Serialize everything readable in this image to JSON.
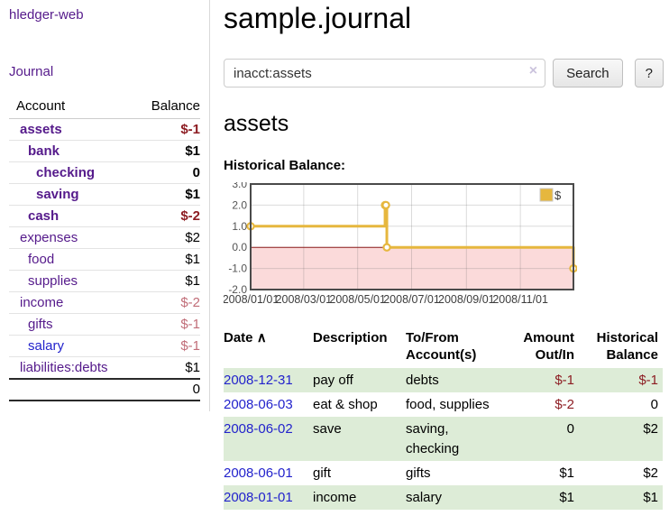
{
  "colors": {
    "link_purple": "#551a8b",
    "link_blue": "#2323cc",
    "negative_strong": "#8d1d23",
    "negative_soft": "#c16d78",
    "row_stripe_green": "#ddecd7",
    "chart_gold": "#e6b73e",
    "chart_negative_fill": "#fbdada",
    "chart_zero_line": "#8f1f1f"
  },
  "sidebar": {
    "app_title": "hledger-web",
    "journal_label": "Journal",
    "accounts": {
      "header_account": "Account",
      "header_balance": "Balance",
      "rows": [
        {
          "label": "assets",
          "depth": 1,
          "bold": true,
          "balance": "$-1",
          "balance_class": "neg-strong",
          "link_class": ""
        },
        {
          "label": "bank",
          "depth": 2,
          "bold": true,
          "balance": "$1",
          "balance_class": "",
          "link_class": ""
        },
        {
          "label": "checking",
          "depth": 3,
          "bold": true,
          "balance": "0",
          "balance_class": "",
          "link_class": ""
        },
        {
          "label": "saving",
          "depth": 3,
          "bold": true,
          "balance": "$1",
          "balance_class": "",
          "link_class": ""
        },
        {
          "label": "cash",
          "depth": 2,
          "bold": true,
          "balance": "$-2",
          "balance_class": "neg-strong",
          "link_class": ""
        },
        {
          "label": "expenses",
          "depth": 1,
          "bold": false,
          "balance": "$2",
          "balance_class": "",
          "link_class": ""
        },
        {
          "label": "food",
          "depth": 2,
          "bold": false,
          "balance": "$1",
          "balance_class": "",
          "link_class": ""
        },
        {
          "label": "supplies",
          "depth": 2,
          "bold": false,
          "balance": "$1",
          "balance_class": "",
          "link_class": ""
        },
        {
          "label": "income",
          "depth": 1,
          "bold": false,
          "balance": "$-2",
          "balance_class": "neg-soft",
          "link_class": ""
        },
        {
          "label": "gifts",
          "depth": 2,
          "bold": false,
          "balance": "$-1",
          "balance_class": "neg-soft",
          "link_class": ""
        },
        {
          "label": "salary",
          "depth": 2,
          "bold": false,
          "balance": "$-1",
          "balance_class": "neg-soft",
          "link_class": "blue"
        },
        {
          "label": "liabilities:debts",
          "depth": 1,
          "bold": false,
          "balance": "$1",
          "balance_class": "",
          "link_class": ""
        }
      ],
      "total": "0"
    }
  },
  "main": {
    "title": "sample.journal",
    "search": {
      "value": "inacct:assets",
      "clear_icon": "×",
      "search_button": "Search",
      "help_button": "?"
    },
    "account_heading": "assets",
    "chart_label": "Historical Balance:"
  },
  "chart_data": {
    "type": "line",
    "title": "Historical Balance",
    "legend": "$",
    "legend_position": "top-right",
    "step": true,
    "grid": true,
    "ylim": [
      -2,
      3
    ],
    "xlim_days": [
      0,
      365
    ],
    "series": [
      {
        "name": "$",
        "points": [
          {
            "date": "2008-01-01",
            "day": 0,
            "value": 1
          },
          {
            "date": "2008-06-01",
            "day": 152,
            "value": 2
          },
          {
            "date": "2008-06-02",
            "day": 153,
            "value": 2
          },
          {
            "date": "2008-06-03",
            "day": 154,
            "value": 0
          },
          {
            "date": "2008-12-31",
            "day": 365,
            "value": -1
          }
        ]
      }
    ],
    "y_ticks": [
      {
        "value": 3,
        "label": "3.0"
      },
      {
        "value": 2,
        "label": "2.0"
      },
      {
        "value": 1,
        "label": "1.0"
      },
      {
        "value": 0,
        "label": "0.0"
      },
      {
        "value": -1,
        "label": "-1.0"
      },
      {
        "value": -2,
        "label": "-2.0"
      }
    ],
    "x_ticks": [
      {
        "day": 0,
        "label": "2008/01/01"
      },
      {
        "day": 60,
        "label": "2008/03/01"
      },
      {
        "day": 121,
        "label": "2008/05/01"
      },
      {
        "day": 182,
        "label": "2008/07/01"
      },
      {
        "day": 244,
        "label": "2008/09/01"
      },
      {
        "day": 305,
        "label": "2008/11/01"
      }
    ]
  },
  "transactions": {
    "headers": [
      "Date",
      "Description",
      "To/From Account(s)",
      "Amount Out/In",
      "Historical Balance"
    ],
    "sort_icon": "∧",
    "rows": [
      {
        "date": "2008-12-31",
        "description": "pay off",
        "accounts": "debts",
        "amount": "$-1",
        "amount_class": "neg-strong",
        "balance": "$-1",
        "balance_class": "neg-strong"
      },
      {
        "date": "2008-06-03",
        "description": "eat & shop",
        "accounts": "food, supplies",
        "amount": "$-2",
        "amount_class": "neg-strong",
        "balance": "0",
        "balance_class": ""
      },
      {
        "date": "2008-06-02",
        "description": "save",
        "accounts": "saving, checking",
        "amount": "0",
        "amount_class": "",
        "balance": "$2",
        "balance_class": ""
      },
      {
        "date": "2008-06-01",
        "description": "gift",
        "accounts": "gifts",
        "amount": "$1",
        "amount_class": "",
        "balance": "$2",
        "balance_class": ""
      },
      {
        "date": "2008-01-01",
        "description": "income",
        "accounts": "salary",
        "amount": "$1",
        "amount_class": "",
        "balance": "$1",
        "balance_class": ""
      }
    ]
  }
}
